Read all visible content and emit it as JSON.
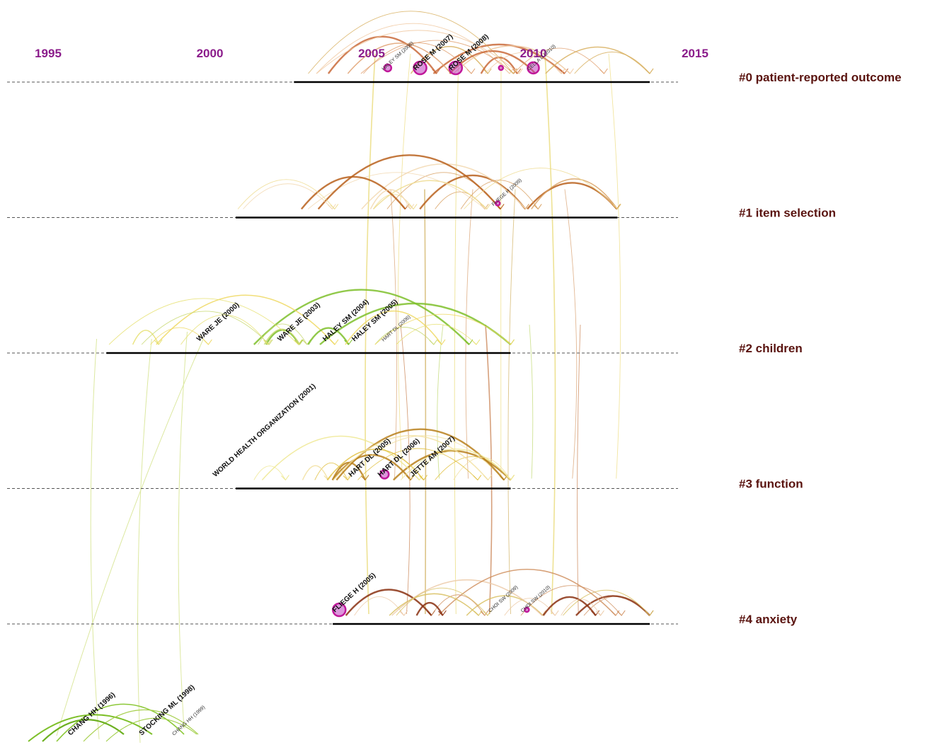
{
  "years": [
    "1995",
    "2000",
    "2005",
    "2010",
    "2015"
  ],
  "clusters": [
    {
      "id": "c0",
      "label": "#0  patient-reported outcome",
      "start": 2002.6,
      "end": 2013.6,
      "arcColors": [
        "#c96a3a",
        "#e0a070",
        "#f0c8a0",
        "#d8b060"
      ]
    },
    {
      "id": "c1",
      "label": "#1  item selection",
      "start": 2000.8,
      "end": 2012.6,
      "arcColors": [
        "#b8601c",
        "#d8a060",
        "#eedc90",
        "#f2d8b0"
      ]
    },
    {
      "id": "c2",
      "label": "#2  children",
      "start": 1996.8,
      "end": 2009.3,
      "arcColors": [
        "#7ec02a",
        "#c8d870",
        "#e6e070",
        "#eed860"
      ]
    },
    {
      "id": "c3",
      "label": "#3  function",
      "start": 2000.8,
      "end": 2009.3,
      "arcColors": [
        "#b8801c",
        "#e0c040",
        "#eee890",
        "#f2e0a0"
      ]
    },
    {
      "id": "c4",
      "label": "#4  anxiety",
      "start": 2003.8,
      "end": 2013.6,
      "arcColors": [
        "#8a3010",
        "#d09060",
        "#eccaa8",
        "#d8c060"
      ]
    }
  ],
  "nodes": [
    {
      "cluster": "c0",
      "year": 2005.5,
      "label": "HALEY SM (2006)",
      "size": "small",
      "ring": 5
    },
    {
      "cluster": "c0",
      "year": 2006.5,
      "label": "ROSE M (2007)",
      "size": "big",
      "ring": 9
    },
    {
      "cluster": "c0",
      "year": 2007.6,
      "label": "ROSE M (2008)",
      "size": "big",
      "ring": 9
    },
    {
      "cluster": "c0",
      "year": 2009.0,
      "label": "",
      "size": "small",
      "ring": 3
    },
    {
      "cluster": "c0",
      "year": 2010.0,
      "label": "CELLA D (2010)",
      "size": "small",
      "ring": 8
    },
    {
      "cluster": "c1",
      "year": 2008.9,
      "label": "FLIEGE H (2009)",
      "size": "small",
      "ring": 3
    },
    {
      "cluster": "c2",
      "year": 1999.8,
      "label": "WARE JE (2000)",
      "size": "big",
      "ring": 0
    },
    {
      "cluster": "c2",
      "year": 2002.3,
      "label": "WARE JE (2003)",
      "size": "big",
      "ring": 0
    },
    {
      "cluster": "c2",
      "year": 2003.7,
      "label": "HALEY SM (2004)",
      "size": "big",
      "ring": 0
    },
    {
      "cluster": "c2",
      "year": 2004.6,
      "label": "HALEY SM (2005)",
      "size": "big",
      "ring": 0
    },
    {
      "cluster": "c2",
      "year": 2005.5,
      "label": "HART DL (2006)",
      "size": "small",
      "ring": 0
    },
    {
      "cluster": "c3",
      "year": 2000.3,
      "label": "WORLD HEALTH ORGANIZATION (2001)",
      "size": "big",
      "ring": 0
    },
    {
      "cluster": "c3",
      "year": 2004.5,
      "label": "HART DL (2005)",
      "size": "big",
      "ring": 0
    },
    {
      "cluster": "c3",
      "year": 2005.4,
      "label": "HART DL (2006)",
      "size": "big",
      "ring": 6
    },
    {
      "cluster": "c3",
      "year": 2006.4,
      "label": "JETTE AM (2007)",
      "size": "big",
      "ring": 0
    },
    {
      "cluster": "c4",
      "year": 2004.0,
      "label": "FLIEGE H (2005)",
      "size": "big",
      "ring": 9
    },
    {
      "cluster": "c4",
      "year": 2008.8,
      "label": "CHOI SW (2009)",
      "size": "small",
      "ring": 0
    },
    {
      "cluster": "c4",
      "year": 2009.8,
      "label": "CHOI SW (2010)",
      "size": "small",
      "ring": 3
    }
  ],
  "bottom_nodes": [
    {
      "year": 1995.8,
      "label": "CHANG HH (1996)",
      "size": "big"
    },
    {
      "year": 1998.0,
      "label": "STOCKING ML (1998)",
      "size": "big"
    },
    {
      "year": 1999.0,
      "label": "CHANG HH (1999)",
      "size": "small"
    }
  ],
  "colors": {
    "year": "#8b1c8b",
    "cluster_label": "#5a1410",
    "node_ring": "#c0189a",
    "node_fill": "#c040c0"
  }
}
